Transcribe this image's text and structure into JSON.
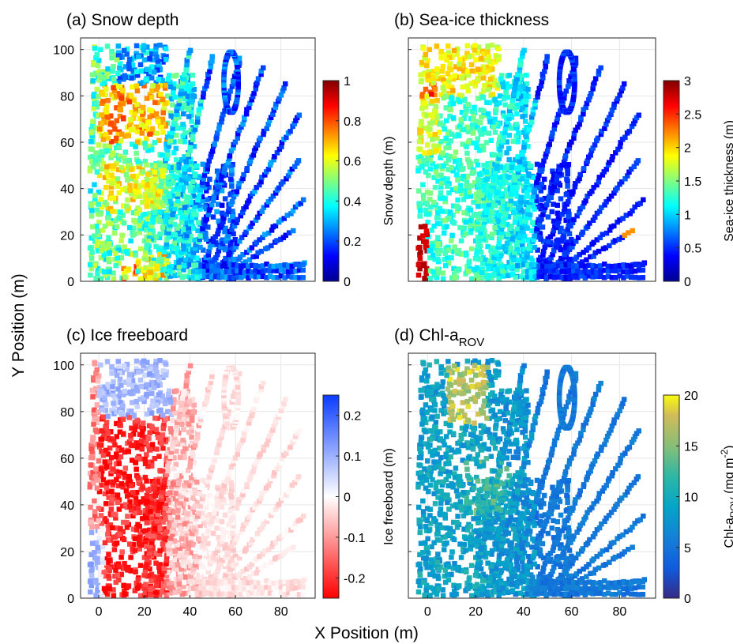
{
  "figure": {
    "xlabel": "X Position (m)",
    "ylabel": "Y Position (m)"
  },
  "chart_data": [
    {
      "type": "heatmap",
      "title": "(a) Snow depth",
      "xlim": [
        -8,
        95
      ],
      "ylim": [
        0,
        105
      ],
      "xticks": [
        "0",
        "20",
        "40",
        "60",
        "80"
      ],
      "yticks": [
        "0",
        "20",
        "40",
        "60",
        "80",
        "100"
      ],
      "x_ticks_shown": false,
      "y_ticks_shown": true,
      "grid": true,
      "colorbar": {
        "label": "Snow depth (m)",
        "range": [
          0,
          1
        ],
        "colormap": "jet",
        "ticks": [
          "0",
          "0.2",
          "0.4",
          "0.6",
          "0.8",
          "1"
        ]
      },
      "field": "snow",
      "value_range": [
        0,
        1
      ]
    },
    {
      "type": "heatmap",
      "title": "(b) Sea-ice thickness",
      "xlim": [
        -8,
        95
      ],
      "ylim": [
        0,
        105
      ],
      "xticks": [
        "0",
        "20",
        "40",
        "60",
        "80"
      ],
      "yticks": [
        "0",
        "20",
        "40",
        "60",
        "80",
        "100"
      ],
      "x_ticks_shown": false,
      "y_ticks_shown": false,
      "grid": true,
      "colorbar": {
        "label": "Sea-ice thickness (m)",
        "range": [
          0,
          3
        ],
        "colormap": "jet",
        "ticks": [
          "0",
          "0.5",
          "1",
          "1.5",
          "2",
          "2.5",
          "3"
        ]
      },
      "field": "ice",
      "value_range": [
        0,
        3
      ]
    },
    {
      "type": "heatmap",
      "title": "(c) Ice freeboard",
      "xlim": [
        -8,
        95
      ],
      "ylim": [
        0,
        105
      ],
      "xticks": [
        "0",
        "20",
        "40",
        "60",
        "80"
      ],
      "yticks": [
        "0",
        "20",
        "40",
        "60",
        "80",
        "100"
      ],
      "x_ticks_shown": true,
      "y_ticks_shown": true,
      "grid": true,
      "colorbar": {
        "label": "Ice freeboard (m)",
        "range": [
          -0.25,
          0.25
        ],
        "colormap": "red-white-blue",
        "ticks": [
          "-0.2",
          "-0.1",
          "0",
          "0.1",
          "0.2"
        ]
      },
      "field": "freeboard",
      "value_range": [
        -0.25,
        0.25
      ]
    },
    {
      "type": "heatmap",
      "title_main": "(d) Chl-a",
      "title_sub": "ROV",
      "xlim": [
        -8,
        95
      ],
      "ylim": [
        0,
        105
      ],
      "xticks": [
        "0",
        "20",
        "40",
        "60",
        "80"
      ],
      "yticks": [
        "0",
        "20",
        "40",
        "60",
        "80",
        "100"
      ],
      "x_ticks_shown": true,
      "y_ticks_shown": false,
      "grid": true,
      "colorbar": {
        "label_main": "Chl-a",
        "label_sub": "ROV",
        "label_unit": " (mg m",
        "label_exp": "-2",
        "label_close": ")",
        "range": [
          0,
          20
        ],
        "colormap": "parula",
        "ticks": [
          "0",
          "5",
          "10",
          "15",
          "20"
        ]
      },
      "field": "chl",
      "value_range": [
        0,
        20
      ]
    }
  ],
  "survey_tracks": {
    "description_units": "m",
    "radial_lines": [
      {
        "x0": 20,
        "y0": 10,
        "x1": 40,
        "y1": 100
      },
      {
        "x0": 28,
        "y0": 10,
        "x1": 50,
        "y1": 97
      },
      {
        "x0": 35,
        "y0": 8,
        "x1": 62,
        "y1": 96
      },
      {
        "x0": 40,
        "y0": 8,
        "x1": 72,
        "y1": 92
      },
      {
        "x0": 45,
        "y0": 6,
        "x1": 82,
        "y1": 85
      },
      {
        "x0": 48,
        "y0": 5,
        "x1": 88,
        "y1": 72
      },
      {
        "x0": 52,
        "y0": 5,
        "x1": 88,
        "y1": 52
      },
      {
        "x0": 55,
        "y0": 4,
        "x1": 90,
        "y1": 35
      },
      {
        "x0": 58,
        "y0": 4,
        "x1": 85,
        "y1": 22
      },
      {
        "x0": 60,
        "y0": 2,
        "x1": 90,
        "y1": 8
      }
    ]
  }
}
